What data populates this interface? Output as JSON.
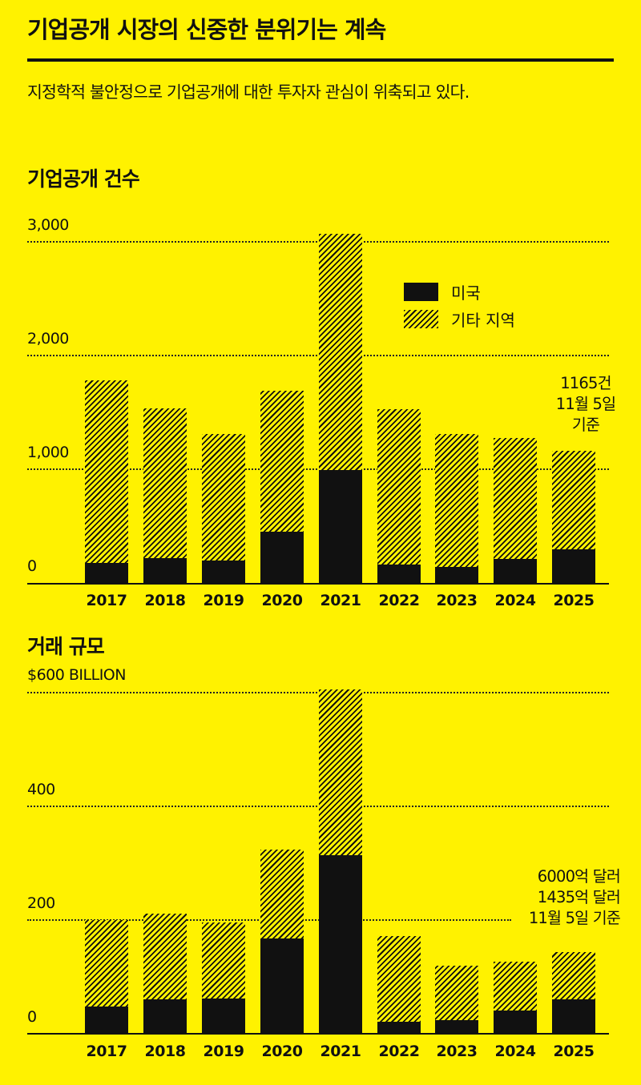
{
  "header": {
    "title": "기업공개 시장의 신중한 분위기는 계속",
    "subtitle": "지정학적 불안정으로 기업공개에 대한 투자자 관심이 위축되고 있다."
  },
  "legend": {
    "us_label": "미국",
    "other_label": "기타 지역"
  },
  "colors": {
    "background": "#FFF200",
    "us": "#111111",
    "other_hatch": "#111111"
  },
  "chart_data": [
    {
      "type": "bar",
      "stacked": true,
      "title": "기업공개 건수",
      "xlabel": "",
      "ylabel": "",
      "categories": [
        "2017",
        "2018",
        "2019",
        "2020",
        "2021",
        "2022",
        "2023",
        "2024",
        "2025"
      ],
      "series": [
        {
          "name": "미국",
          "values": [
            185,
            225,
            205,
            455,
            1000,
            170,
            145,
            220,
            300
          ]
        },
        {
          "name": "기타 지역",
          "values": [
            1595,
            1315,
            1105,
            1235,
            2070,
            1360,
            1165,
            1060,
            865
          ]
        }
      ],
      "totals": [
        1780,
        1540,
        1310,
        1690,
        3070,
        1530,
        1310,
        1280,
        1165
      ],
      "yticks": [
        "3,000",
        "2,000",
        "1,000",
        "0"
      ],
      "ylim": [
        0,
        3000
      ],
      "grid": true,
      "legend_position": "upper-right",
      "annotation": {
        "lines": [
          "1165건",
          "11월 5일",
          "기준"
        ]
      }
    },
    {
      "type": "bar",
      "stacked": true,
      "title": "거래 규모",
      "xlabel": "",
      "ylabel": "$ Billion",
      "categories": [
        "2017",
        "2018",
        "2019",
        "2020",
        "2021",
        "2022",
        "2023",
        "2024",
        "2025"
      ],
      "series": [
        {
          "name": "미국",
          "values": [
            48,
            60,
            62,
            168,
            314,
            21,
            24,
            41,
            61
          ]
        },
        {
          "name": "기타 지역",
          "values": [
            152,
            151,
            134,
            156,
            292,
            151,
            96,
            86,
            83
          ]
        }
      ],
      "totals": [
        200,
        211,
        196,
        324,
        606,
        172,
        120,
        127,
        144
      ],
      "yticks": [
        "$600 BILLION",
        "400",
        "200",
        "0"
      ],
      "ylim": [
        0,
        600
      ],
      "grid": true,
      "annotation": {
        "lines": [
          "6000억 달러",
          "1435억 달러",
          "11월 5일 기준"
        ]
      }
    }
  ]
}
